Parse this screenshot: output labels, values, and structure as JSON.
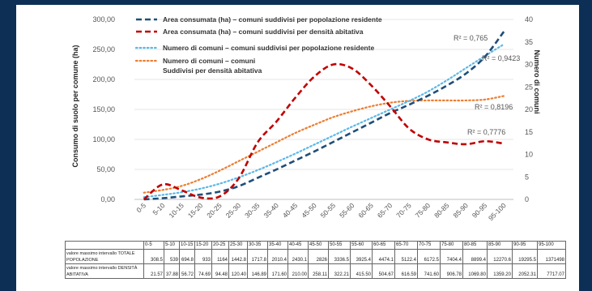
{
  "chart_data": {
    "type": "line",
    "categories": [
      "0-5",
      "5-10",
      "10-15",
      "15-20",
      "20-25",
      "25-30",
      "30-35",
      "35-40",
      "40-45",
      "45-50",
      "50-55",
      "55-60",
      "60-65",
      "65-70",
      "70-75",
      "75-80",
      "80-85",
      "85-90",
      "90-95",
      "95-100"
    ],
    "y_left": {
      "label": "Consumo di suolo per comune (ha)",
      "ticks": [
        "0,00",
        "50,00",
        "100,00",
        "150,00",
        "200,00",
        "250,00",
        "300,00"
      ],
      "range": [
        0,
        300
      ]
    },
    "y_right": {
      "label": "Numero di comuni",
      "ticks": [
        "0",
        "5",
        "10",
        "15",
        "20",
        "25",
        "30",
        "35",
        "40"
      ],
      "range": [
        0,
        40
      ]
    },
    "series": [
      {
        "name": "Area consumata (ha) – comuni suddivisi per popolazione residente",
        "axis": "left",
        "color": "#1f4e79",
        "style": "dashed",
        "values": [
          0,
          2,
          5,
          8,
          13,
          22,
          36,
          50,
          65,
          80,
          96,
          112,
          128,
          144,
          158,
          173,
          190,
          210,
          238,
          280
        ]
      },
      {
        "name": "Area consumata (ha) – comuni suddivisi per densità abitativa",
        "axis": "left",
        "color": "#c00000",
        "style": "dashed",
        "values": [
          0,
          25,
          15,
          3,
          5,
          35,
          95,
          130,
          170,
          205,
          225,
          218,
          190,
          155,
          118,
          100,
          95,
          92,
          97,
          93
        ]
      },
      {
        "name": "Numero di comuni – comuni suddivisi per popolazione residente",
        "axis": "right",
        "color": "#5bb8e8",
        "style": "dotted",
        "values": [
          0.5,
          1,
          1.6,
          2.4,
          3.5,
          4.9,
          6.5,
          8.3,
          10.2,
          12.2,
          14.2,
          16.2,
          18.1,
          20.0,
          21.9,
          24.0,
          26.5,
          29.2,
          31.9,
          34.5
        ]
      },
      {
        "name": "Numero di comuni – comuni Suddivisi per densità abitativa",
        "axis": "right",
        "color": "#ed7d31",
        "style": "dotted",
        "values": [
          1.5,
          2.1,
          3.0,
          4.5,
          6.4,
          8.5,
          10.6,
          12.7,
          14.8,
          16.6,
          18.3,
          19.6,
          20.7,
          21.5,
          21.9,
          22.0,
          22.0,
          22.0,
          22.2,
          23.0
        ]
      }
    ],
    "legend": [
      {
        "line1": "Area consumata (ha) – comuni suddivisi per popolazione residente",
        "line2": "",
        "color": "#1f4e79",
        "style": "dashed"
      },
      {
        "line1": "Area consumata (ha) – comuni suddivisi per densità abitativa",
        "line2": "",
        "color": "#c00000",
        "style": "dashed"
      },
      {
        "line1": "Numero di comuni – comuni suddivisi per popolazione residente",
        "line2": "",
        "color": "#5bb8e8",
        "style": "dotted"
      },
      {
        "line1": "Numero di comuni – comuni",
        "line2": "Suddivisi per densità abitativa",
        "color": "#ed7d31",
        "style": "dotted"
      }
    ],
    "r2_labels": [
      "R² = 0,765",
      "R² = 0,9423",
      "R² = 0,8196",
      "R² = 0,7776"
    ]
  },
  "table": {
    "headers": [
      "0-5",
      "5-10",
      "10-15",
      "15-20",
      "20-25",
      "25-30",
      "30-35",
      "35-40",
      "40-45",
      "45-50",
      "50-55",
      "55-60",
      "60-65",
      "65-70",
      "70-75",
      "75-80",
      "80-85",
      "85-90",
      "90-95",
      "95-100"
    ],
    "rows": [
      {
        "label": "valore massimo intervallo TOTALE POPOLAZIONE",
        "values": [
          "308.5",
          "539",
          "694.8",
          "933",
          "1164",
          "1442.8",
          "1717.8",
          "2010.4",
          "2430.1",
          "2826",
          "3336.5",
          "3925.4",
          "4474.1",
          "5122.4",
          "6172.5",
          "7404.4",
          "8899.4",
          "12270.6",
          "19295.5",
          "1371498"
        ]
      },
      {
        "label": "valore massimo intervallo DENSITÀ ABITATIVA",
        "values": [
          "21.57",
          "37.88",
          "56.72",
          "74.69",
          "94.48",
          "120.40",
          "146.89",
          "171.60",
          "210.00",
          "258.11",
          "322.21",
          "415.50",
          "504.67",
          "616.59",
          "741.60",
          "906.78",
          "1069.80",
          "1359.20",
          "2052.31",
          "7717.07"
        ]
      }
    ]
  }
}
